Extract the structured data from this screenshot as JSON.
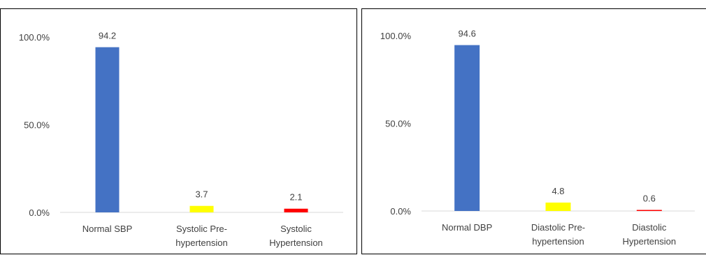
{
  "chart_data": [
    {
      "type": "bar",
      "title": "",
      "xlabel": "",
      "ylabel": "",
      "ylim": [
        0,
        100
      ],
      "yticks": [
        "0.0%",
        "50.0%",
        "100.0%"
      ],
      "grid": false,
      "categories": [
        [
          "Normal SBP"
        ],
        [
          "Systolic Pre-",
          "hypertension"
        ],
        [
          "Systolic",
          "Hypertension"
        ]
      ],
      "values": [
        94.2,
        3.7,
        2.1
      ],
      "data_labels": [
        "94.2",
        "3.7",
        "2.1"
      ],
      "colors": [
        "#4472C4",
        "#FFFF00",
        "#FF0000"
      ]
    },
    {
      "type": "bar",
      "title": "",
      "xlabel": "",
      "ylabel": "",
      "ylim": [
        0,
        100
      ],
      "yticks": [
        "0.0%",
        "50.0%",
        "100.0%"
      ],
      "grid": false,
      "categories": [
        [
          "Normal DBP"
        ],
        [
          "Diastolic Pre-",
          "hypertension"
        ],
        [
          "Diastolic",
          "Hypertension"
        ]
      ],
      "values": [
        94.6,
        4.8,
        0.6
      ],
      "data_labels": [
        "94.6",
        "4.8",
        "0.6"
      ],
      "colors": [
        "#4472C4",
        "#FFFF00",
        "#FF0000"
      ]
    }
  ]
}
